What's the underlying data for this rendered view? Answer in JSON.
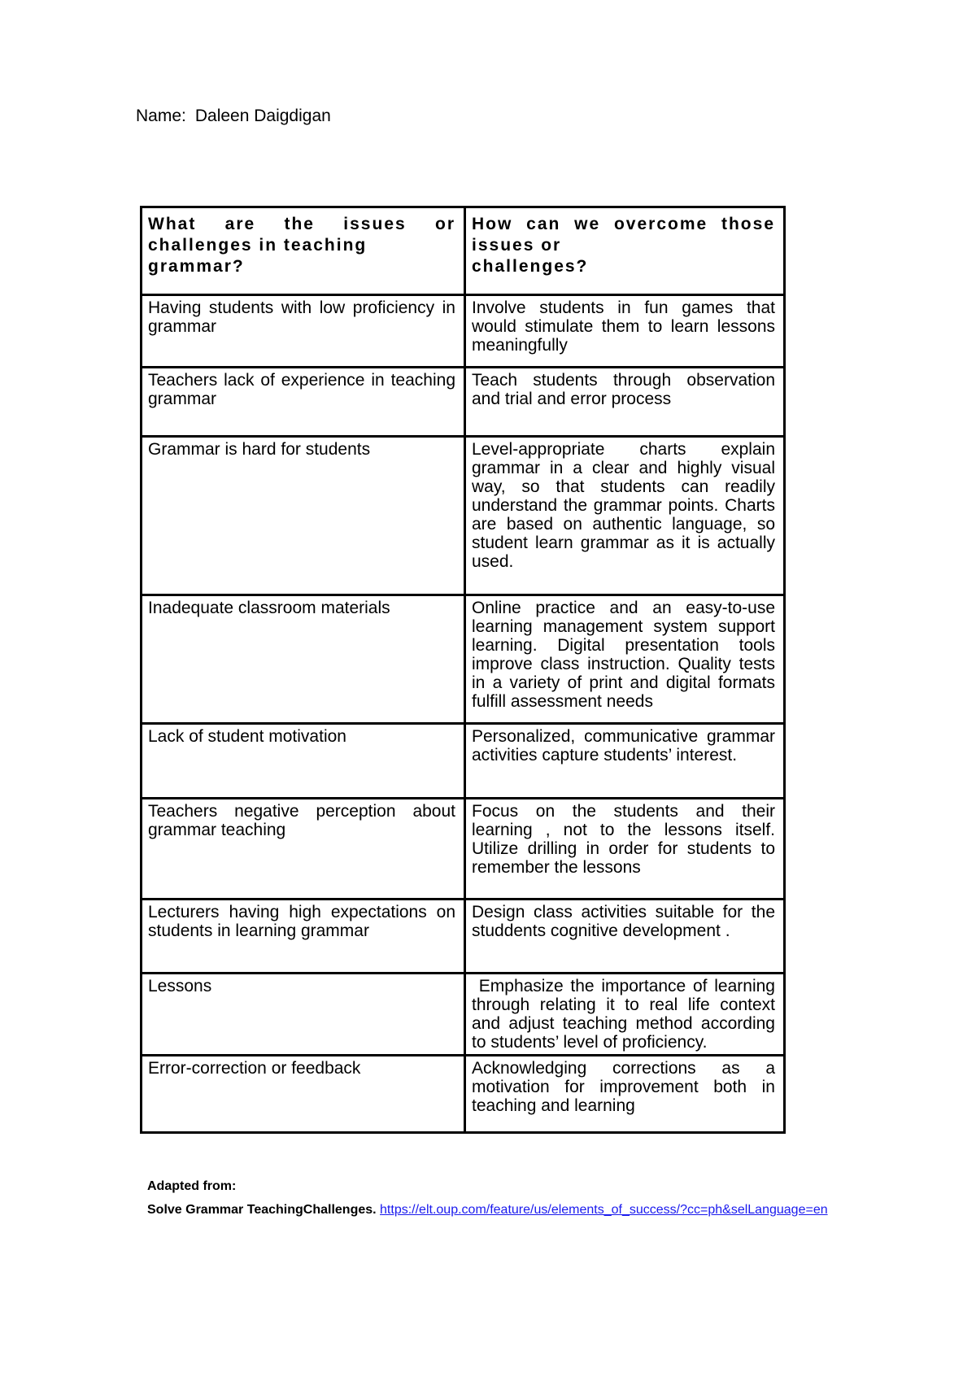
{
  "header": {
    "name_label": "Name:",
    "name_value": "Daleen Daigdigan"
  },
  "table": {
    "headers": [
      "What are the issues or challenges in teaching\ngrammar?",
      "How can we overcome those issues or\nchallenges?"
    ],
    "rows": [
      {
        "challenge": "Having students with low proficiency in grammar",
        "solution": "Involve students in fun games that would stimulate them to learn lessons meaningfully"
      },
      {
        "challenge": "Teachers lack of experience in teaching grammar",
        "solution": "Teach students through observation and trial and error process"
      },
      {
        "challenge": "Grammar is hard for students",
        "solution": "Level-appropriate charts explain grammar in a clear and highly visual way, so that students can readily understand the grammar points. Charts are based on authentic language, so student learn grammar as it is actually used."
      },
      {
        "challenge": "Inadequate classroom materials",
        "solution": "Online practice and an easy-to-use learning management system support learning. Digital presentation tools improve class instruction. Quality tests in a variety of print and digital formats fulfill assessment needs"
      },
      {
        "challenge": "Lack of student motivation",
        "solution": "Personalized, communicative grammar activities capture students’ interest."
      },
      {
        "challenge": "Teachers negative perception about grammar teaching",
        "solution": "Focus on the students and their learning , not to the lessons itself. Utilize drilling in order for students to remember the lessons"
      },
      {
        "challenge": "Lecturers having high expectations on students in learning grammar",
        "solution": "Design class activities suitable for the studdents cognitive development ."
      },
      {
        "challenge": "Lessons",
        "solution": " Emphasize the importance of learning through relating it to real life context and adjust teaching method according to students’ level of proficiency."
      },
      {
        "challenge": "Error-correction or feedback",
        "solution": "Acknowledging corrections as a motivation for improvement both in teaching and learning"
      }
    ]
  },
  "footer": {
    "adapted_from": "Adapted from:",
    "source_text": "Solve Grammar TeachingChallenges.",
    "link_text": "https://elt.oup.com/feature/us/elements_of_success/?cc=ph&selLanguage=en"
  }
}
